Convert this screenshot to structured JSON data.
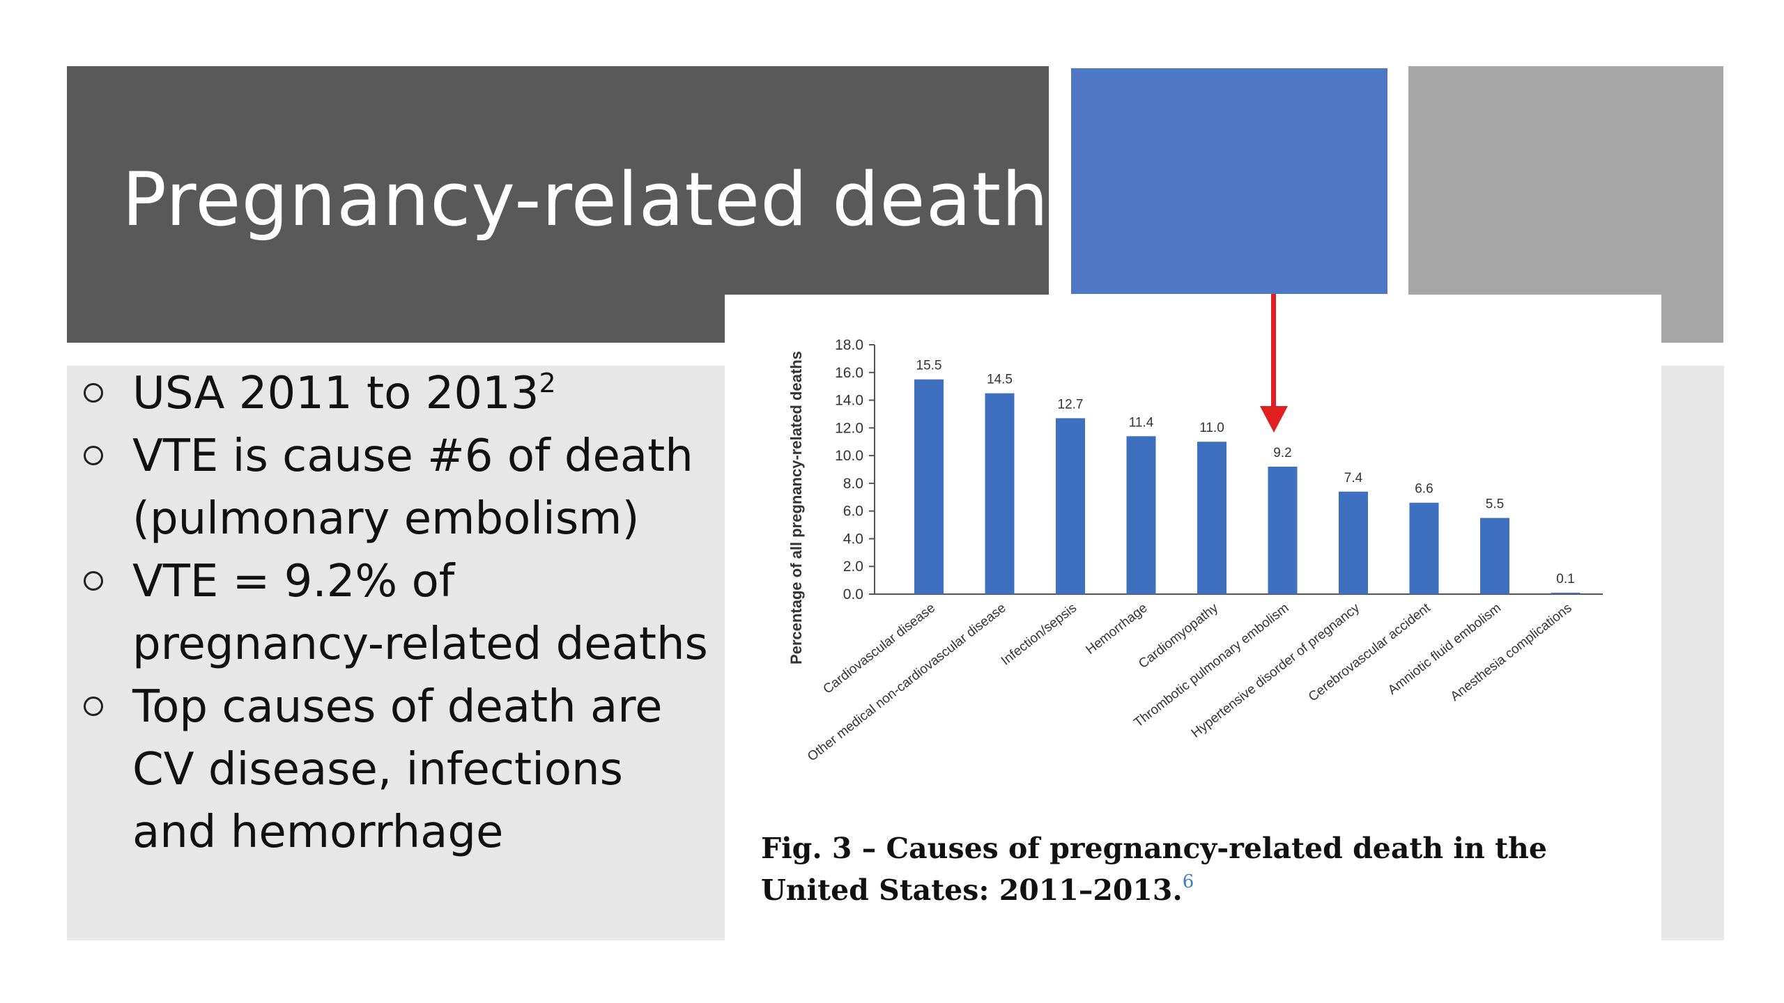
{
  "slide": {
    "title": "Pregnancy-related deaths",
    "bullets": [
      {
        "text": "USA 2011 to 2013",
        "sup": "2"
      },
      {
        "text": "VTE is cause #6 of death (pulmonary embolism)"
      },
      {
        "text": "VTE = 9.2% of pregnancy-related deaths"
      },
      {
        "text": "Top causes of death are CV disease, infections and hemorrhage"
      }
    ],
    "colors": {
      "title_bar": "#595959",
      "accent_blue": "#4e78c4",
      "accent_gray": "#a6a6a6",
      "panel": "#e7e7e7",
      "arrow": "#e02020"
    }
  },
  "caption": {
    "text": "Fig. 3 – Causes of pregnancy-related death in the United States: 2011–2013.",
    "ref": "6"
  },
  "chart_data": {
    "type": "bar",
    "ylabel": "Percentage of all pregnancy-related deaths",
    "ylim": [
      0,
      18
    ],
    "yticks": [
      "0.0",
      "2.0",
      "4.0",
      "6.0",
      "8.0",
      "10.0",
      "12.0",
      "14.0",
      "16.0",
      "18.0"
    ],
    "categories": [
      "Cardiovascular disease",
      "Other medical non-cardiovascular disease",
      "Infection/sepsis",
      "Hemorrhage",
      "Cardiomyopathy",
      "Thrombotic pulmonary embolism",
      "Hypertensive disorder of pregnancy",
      "Cerebrovascular accident",
      "Amniotic fluid embolism",
      "Anesthesia complications"
    ],
    "values": [
      15.5,
      14.5,
      12.7,
      11.4,
      11.0,
      9.2,
      7.4,
      6.6,
      5.5,
      0.1
    ],
    "value_labels": [
      "15.5",
      "14.5",
      "12.7",
      "11.4",
      "11.0",
      "9.2",
      "7.4",
      "6.6",
      "5.5",
      "0.1"
    ],
    "bar_color": "#3f6fbf",
    "grid": false,
    "highlighted_category": "Thrombotic pulmonary embolism"
  }
}
